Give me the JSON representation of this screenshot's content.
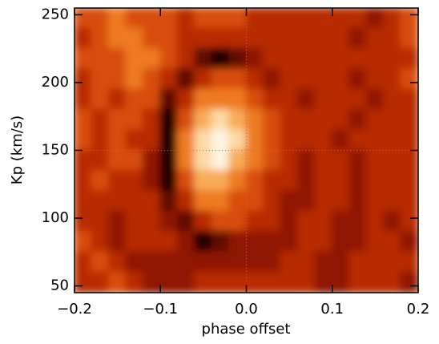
{
  "chart_data": {
    "type": "heatmap",
    "xlabel": "phase offset",
    "ylabel": "Kp (km/s)",
    "xlim": [
      -0.2,
      0.2
    ],
    "ylim": [
      45,
      255
    ],
    "xticks": [
      {
        "value": -0.2,
        "label": "−0.2"
      },
      {
        "value": -0.1,
        "label": "−0.1"
      },
      {
        "value": 0,
        "label": "0.0"
      },
      0.1,
      0.2
    ],
    "yticks": [
      50,
      100,
      150,
      200,
      250
    ],
    "crosshair": {
      "x": 0,
      "y": 150
    },
    "colors": [
      "#1e0600",
      "#5e0c00",
      "#8f1800",
      "#b82a00",
      "#d84e08",
      "#ee7a20",
      "#f8ac58",
      "#fdd9a4",
      "#fff4e2"
    ],
    "x": [
      -0.19,
      -0.17,
      -0.15,
      -0.13,
      -0.11,
      -0.09,
      -0.07,
      -0.05,
      -0.03,
      -0.01,
      0.01,
      0.03,
      0.05,
      0.07,
      0.09,
      0.11,
      0.13,
      0.15,
      0.17,
      0.19
    ],
    "y": [
      247.5,
      232.5,
      217.5,
      202.5,
      187.5,
      172.5,
      157.5,
      142.5,
      127.5,
      112.5,
      97.5,
      82.5,
      67.5,
      52.5
    ],
    "z": [
      [
        4,
        4,
        5,
        4,
        4,
        4,
        3,
        4,
        4,
        4,
        3,
        3,
        3,
        3,
        3,
        3,
        3,
        2,
        3,
        4
      ],
      [
        3,
        4,
        5,
        5,
        4,
        4,
        3,
        3,
        3,
        3,
        3,
        3,
        3,
        3,
        3,
        3,
        2,
        3,
        3,
        4
      ],
      [
        4,
        4,
        4,
        5,
        5,
        4,
        3,
        1,
        0,
        1,
        2,
        3,
        3,
        3,
        3,
        3,
        3,
        3,
        3,
        3
      ],
      [
        3,
        4,
        4,
        5,
        4,
        3,
        1,
        3,
        4,
        4,
        3,
        2,
        3,
        3,
        3,
        3,
        2,
        3,
        3,
        4
      ],
      [
        3,
        4,
        3,
        4,
        4,
        1,
        3,
        5,
        5,
        5,
        4,
        3,
        3,
        2,
        3,
        3,
        3,
        2,
        3,
        3
      ],
      [
        4,
        3,
        4,
        4,
        3,
        0,
        4,
        6,
        7,
        6,
        5,
        4,
        3,
        3,
        3,
        3,
        2,
        3,
        3,
        3
      ],
      [
        4,
        3,
        4,
        3,
        3,
        0,
        5,
        7,
        8,
        7,
        5,
        4,
        3,
        3,
        3,
        2,
        3,
        3,
        3,
        3
      ],
      [
        3,
        3,
        4,
        4,
        2,
        0,
        5,
        7,
        8,
        6,
        5,
        4,
        3,
        2,
        3,
        3,
        2,
        3,
        3,
        3
      ],
      [
        3,
        4,
        3,
        3,
        2,
        0,
        4,
        6,
        6,
        5,
        4,
        3,
        3,
        2,
        3,
        3,
        2,
        3,
        3,
        3
      ],
      [
        3,
        3,
        3,
        3,
        3,
        1,
        3,
        5,
        5,
        4,
        4,
        3,
        2,
        2,
        3,
        3,
        2,
        3,
        3,
        3
      ],
      [
        3,
        3,
        2,
        3,
        3,
        2,
        1,
        3,
        4,
        4,
        3,
        3,
        2,
        3,
        3,
        2,
        2,
        3,
        2,
        3
      ],
      [
        4,
        3,
        2,
        3,
        3,
        3,
        2,
        0,
        1,
        2,
        2,
        2,
        2,
        3,
        3,
        2,
        2,
        3,
        3,
        2
      ],
      [
        3,
        4,
        3,
        2,
        2,
        2,
        2,
        2,
        2,
        2,
        2,
        2,
        3,
        3,
        2,
        2,
        3,
        3,
        3,
        3
      ],
      [
        3,
        3,
        4,
        3,
        2,
        2,
        2,
        3,
        3,
        3,
        3,
        3,
        3,
        3,
        2,
        2,
        3,
        3,
        3,
        2
      ]
    ]
  }
}
